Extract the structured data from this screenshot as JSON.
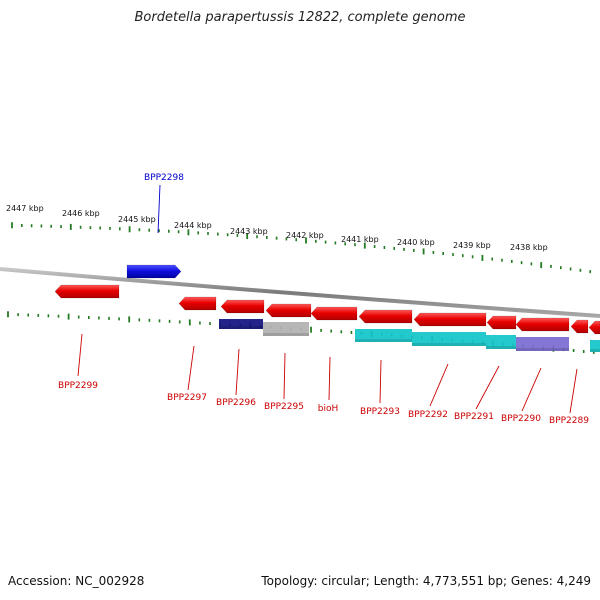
{
  "title": "Bordetella parapertussis 12822, complete genome",
  "footer": {
    "accession": "Accession: NC_002928",
    "summary": "Topology: circular; Length: 4,773,551 bp; Genes: 4,249"
  },
  "colors": {
    "forward_gene": "#1010e0",
    "reverse_gene": "#e80000",
    "forward_label": "#0000cc",
    "reverse_label": "#cc0000",
    "tick": "#227a22",
    "backbone": "#8a8a8a",
    "feature_cyan": "#10c4c8",
    "feature_navy": "#101080",
    "feature_grey": "#b0b0b0",
    "feature_purple": "#7a6ad0"
  },
  "ruler_labels": [
    "2447 kbp",
    "2446 kbp",
    "2445 kbp",
    "2444 kbp",
    "2443 kbp",
    "2442 kbp",
    "2441 kbp",
    "2440 kbp",
    "2439 kbp",
    "2438 kbp"
  ],
  "genes": [
    {
      "name": "BPP2298",
      "strand": "forward"
    },
    {
      "name": "BPP2299",
      "strand": "reverse"
    },
    {
      "name": "BPP2297",
      "strand": "reverse"
    },
    {
      "name": "BPP2296",
      "strand": "reverse"
    },
    {
      "name": "BPP2295",
      "strand": "reverse"
    },
    {
      "name": "bioH",
      "strand": "reverse"
    },
    {
      "name": "BPP2293",
      "strand": "reverse"
    },
    {
      "name": "BPP2292",
      "strand": "reverse"
    },
    {
      "name": "BPP2291",
      "strand": "reverse"
    },
    {
      "name": "BPP2290",
      "strand": "reverse"
    },
    {
      "name": "BPP2289",
      "strand": "reverse"
    }
  ]
}
